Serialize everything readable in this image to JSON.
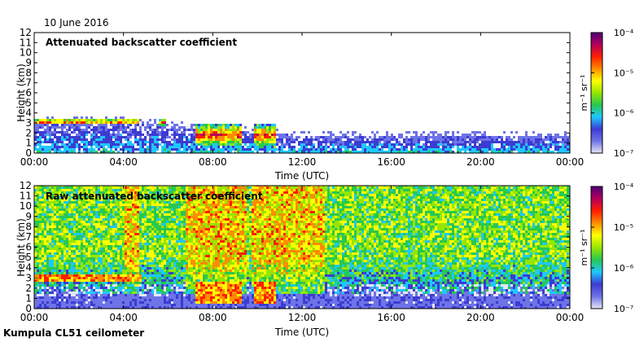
{
  "date_label": "10 June 2016",
  "footer_label": "Kumpula CL51 ceilometer",
  "colors": {
    "colormap": [
      "#e6e6f5",
      "#6e73e6",
      "#3c3cd2",
      "#1ec8ff",
      "#28c850",
      "#96e600",
      "#ffff00",
      "#ff8c00",
      "#ff1e00",
      "#b4005a",
      "#500078"
    ],
    "frame": "#000000",
    "background": "#ffffff"
  },
  "chart_data": [
    {
      "type": "heatmap",
      "title": "Attenuated backscatter coefficient",
      "xlabel": "Time (UTC)",
      "ylabel": "Height (km)",
      "xticks": [
        "00:00",
        "04:00",
        "08:00",
        "12:00",
        "16:00",
        "20:00",
        "00:00"
      ],
      "xlim_hours": [
        0,
        24
      ],
      "ylim": [
        0,
        12
      ],
      "yticks": [
        0,
        1,
        2,
        3,
        4,
        5,
        6,
        7,
        8,
        9,
        10,
        11,
        12
      ],
      "colorbar": {
        "unit_label": "m⁻¹ sr⁻¹",
        "scale": "log",
        "range": [
          1e-07,
          0.0001
        ],
        "ticks": [
          "10⁻⁴",
          "10⁻⁵",
          "10⁻⁶",
          "10⁻⁷"
        ]
      },
      "features": {
        "boundary_layer_top_km": [
          [
            0,
            3.1
          ],
          [
            4.5,
            3.0
          ],
          [
            5.2,
            2.9
          ],
          [
            8,
            2.2
          ],
          [
            10,
            2.0
          ],
          [
            12,
            1.6
          ],
          [
            16,
            1.6
          ],
          [
            20,
            1.7
          ],
          [
            24,
            1.6
          ]
        ],
        "low_cloud_segments": [
          {
            "start_h": 0.0,
            "end_h": 4.6,
            "base_km": 2.7,
            "top_km": 3.3
          },
          {
            "start_h": 5.5,
            "end_h": 5.9,
            "base_km": 2.6,
            "top_km": 3.2
          },
          {
            "start_h": 7.2,
            "end_h": 9.2,
            "base_km": 0.5,
            "top_km": 2.8
          },
          {
            "start_h": 9.8,
            "end_h": 10.8,
            "base_km": 0.4,
            "top_km": 2.8
          }
        ]
      }
    },
    {
      "type": "heatmap",
      "title": "Raw attenuated backscatter coefficient",
      "xlabel": "Time (UTC)",
      "ylabel": "Height (km)",
      "xticks": [
        "00:00",
        "04:00",
        "08:00",
        "12:00",
        "16:00",
        "20:00",
        "00:00"
      ],
      "xlim_hours": [
        0,
        24
      ],
      "ylim": [
        0,
        12
      ],
      "yticks": [
        0,
        1,
        2,
        3,
        4,
        5,
        6,
        7,
        8,
        9,
        10,
        11,
        12
      ],
      "colorbar": {
        "unit_label": "m⁻¹ sr⁻¹",
        "scale": "log",
        "range": [
          1e-07,
          0.0001
        ],
        "ticks": [
          "10⁻⁴",
          "10⁻⁵",
          "10⁻⁶",
          "10⁻⁷"
        ]
      },
      "features": {
        "noisy_periods": [
          {
            "start_h": 4.0,
            "end_h": 4.7
          },
          {
            "start_h": 6.7,
            "end_h": 9.5
          },
          {
            "start_h": 9.7,
            "end_h": 11.2
          },
          {
            "start_h": 11.2,
            "end_h": 13.0
          }
        ]
      }
    }
  ]
}
